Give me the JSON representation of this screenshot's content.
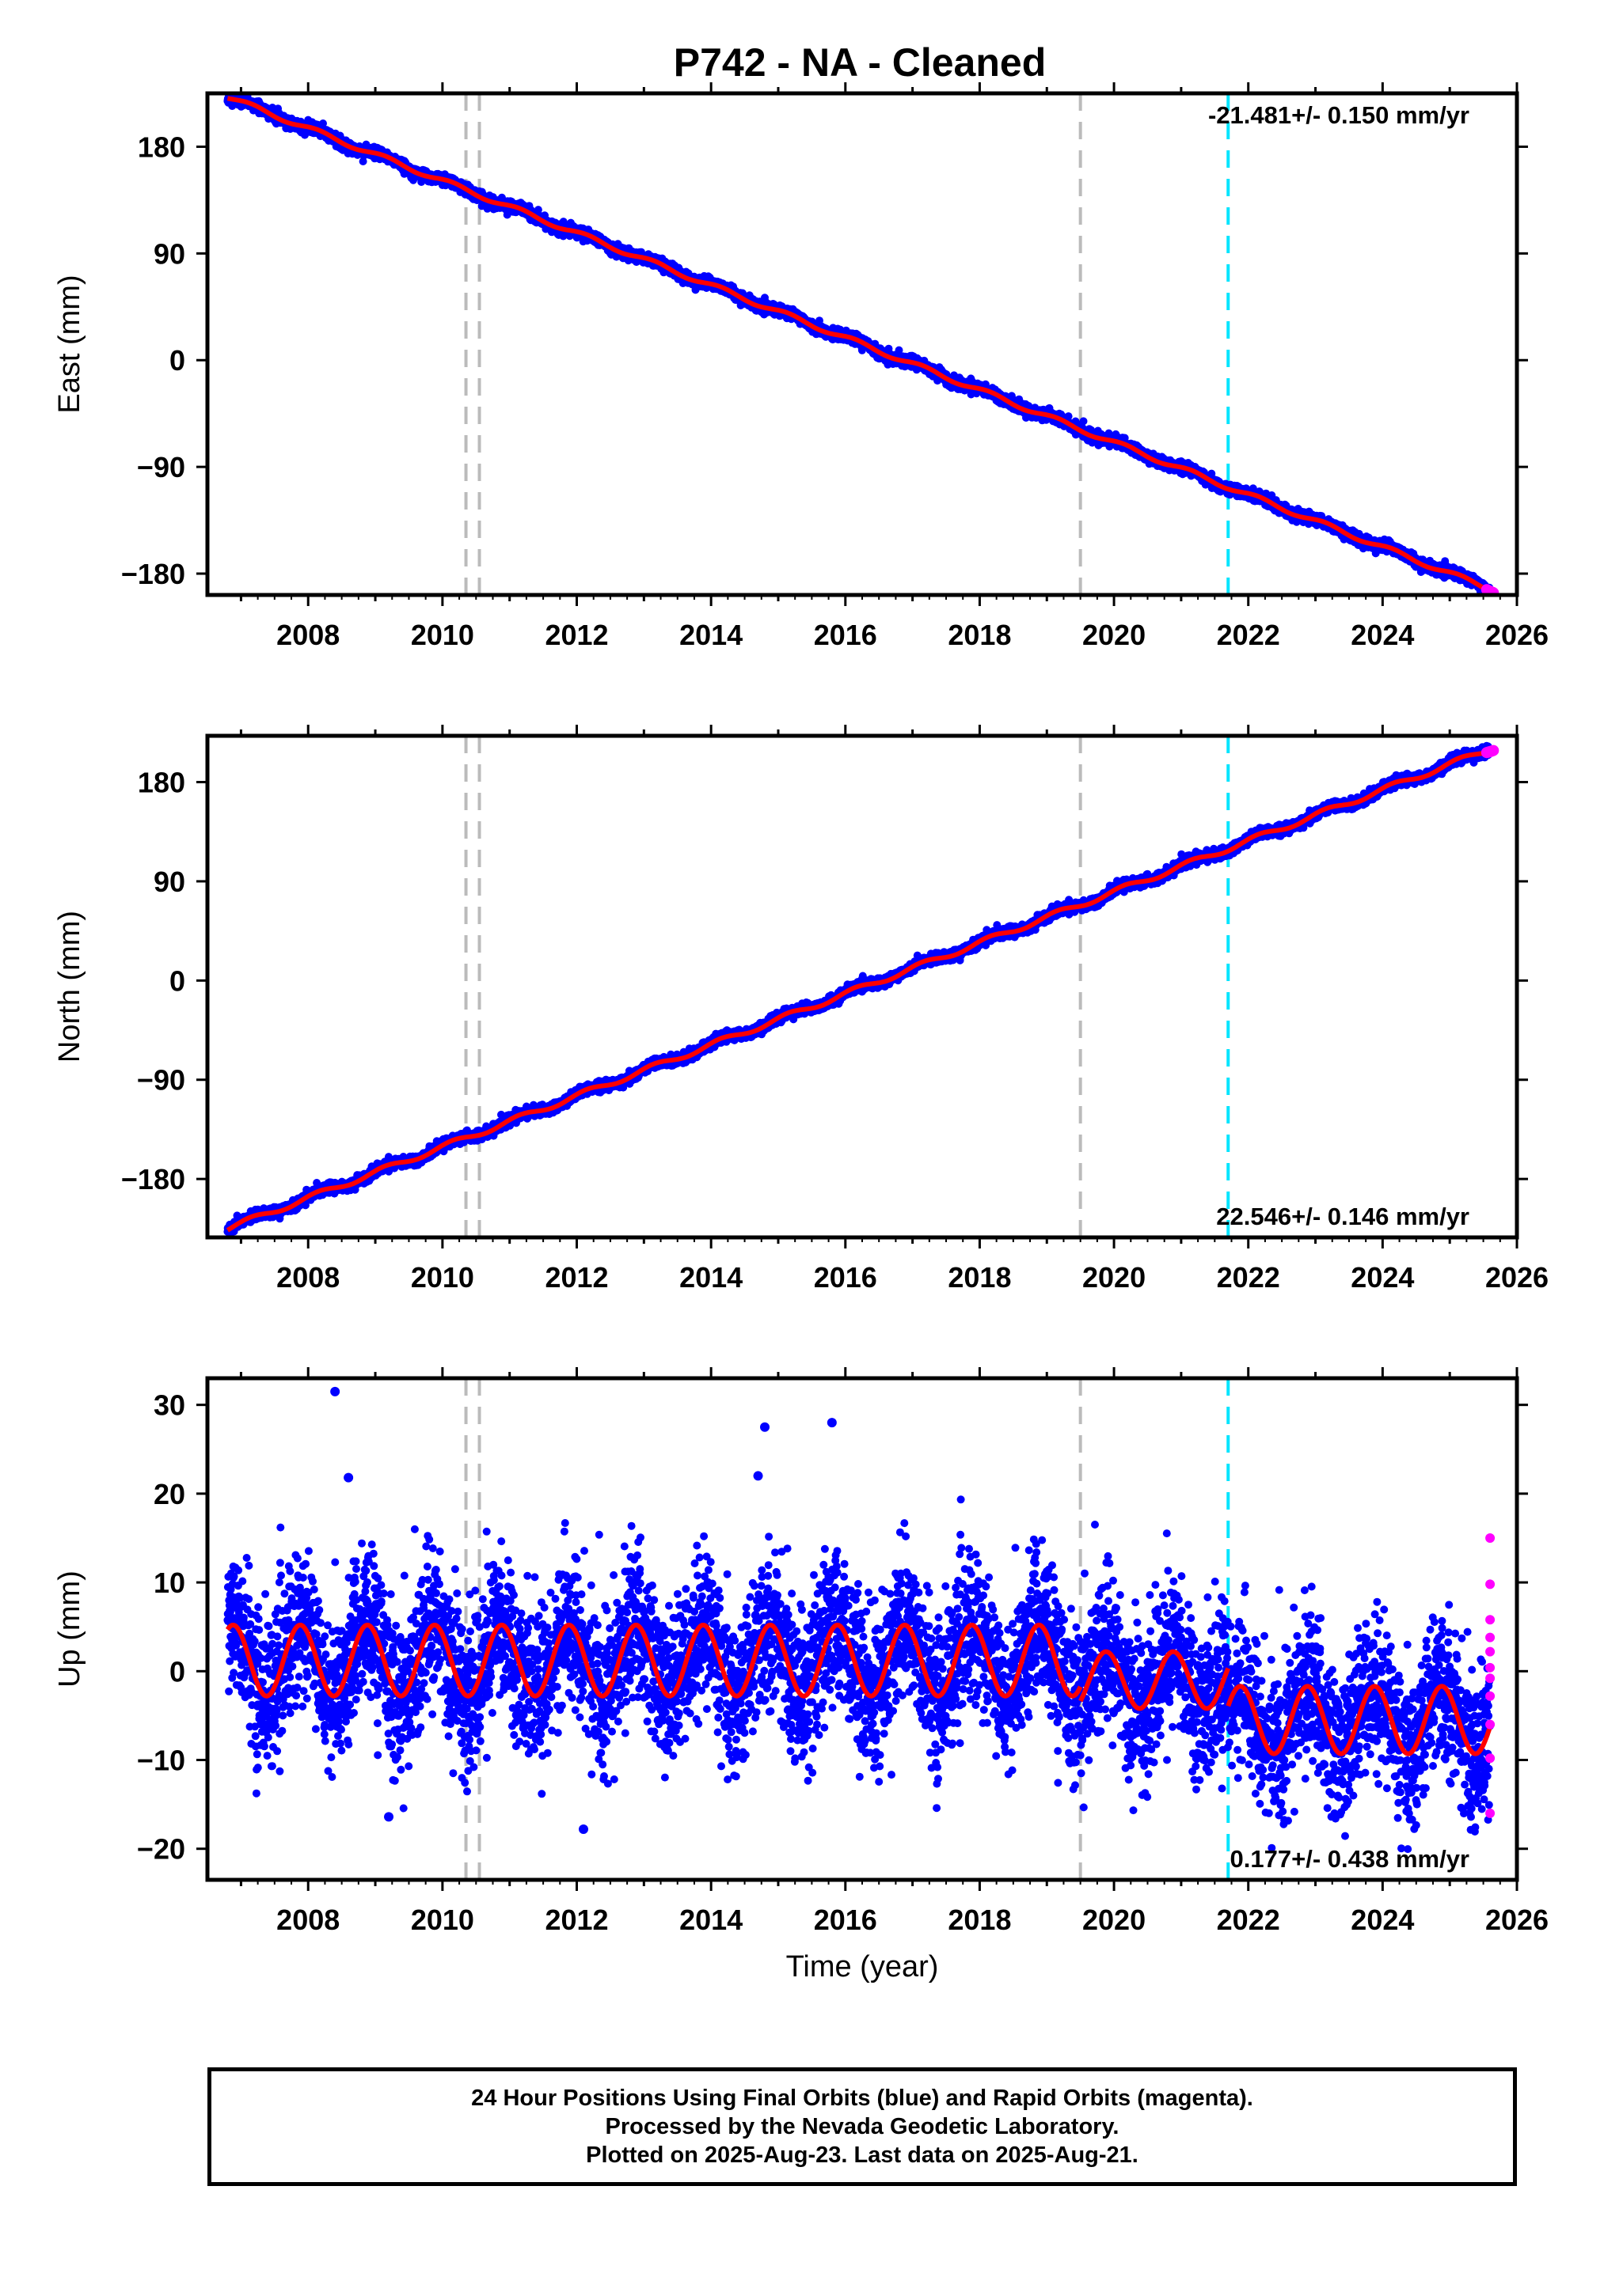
{
  "title": "P742  - NA - Cleaned",
  "footer": {
    "lines": [
      "24 Hour Positions Using Final Orbits (blue) and Rapid Orbits (magenta).",
      "Processed by the Nevada Geodetic Laboratory.",
      "Plotted on 2025-Aug-23. Last data on 2025-Aug-21."
    ]
  },
  "colors": {
    "final_orbits": "#0000ff",
    "rapid_orbits": "#ff00ff",
    "model_fit": "#ff0000",
    "equipment_change": "#bbbbbb",
    "event": "#00e5ff"
  },
  "chart_data": [
    {
      "type": "scatter",
      "name": "east",
      "ylabel": "East (mm)",
      "xlabel": "",
      "xlim": [
        2006.5,
        2026.0
      ],
      "ylim": [
        -198,
        225
      ],
      "xticks": [
        2008,
        2010,
        2012,
        2014,
        2016,
        2018,
        2020,
        2022,
        2024,
        2026
      ],
      "yticks": [
        180,
        90,
        0,
        -90,
        -180
      ],
      "ytick_labels": [
        "180",
        "90",
        "0",
        "−90",
        "−180"
      ],
      "rate_label": "-21.481+/- 0.150 mm/yr",
      "trend": {
        "t0": 2006.8,
        "y0": 222,
        "t1": 2025.6,
        "y1": -193
      },
      "seasonal_amplitude": 2,
      "noise_sigma": 2.2,
      "gray_lines": [
        2010.35,
        2010.55,
        2019.5
      ],
      "cyan_lines": [
        2021.7
      ],
      "rapid_range": [
        2025.55,
        2025.65
      ]
    },
    {
      "type": "scatter",
      "name": "north",
      "ylabel": "North (mm)",
      "xlabel": "",
      "xlim": [
        2006.5,
        2026.0
      ],
      "ylim": [
        -233,
        222
      ],
      "xticks": [
        2008,
        2010,
        2012,
        2014,
        2016,
        2018,
        2020,
        2022,
        2024,
        2026
      ],
      "yticks": [
        180,
        90,
        0,
        -90,
        -180
      ],
      "ytick_labels": [
        "180",
        "90",
        "0",
        "−90",
        "−180"
      ],
      "rate_label": "22.546+/- 0.146 mm/yr",
      "trend": {
        "t0": 2006.8,
        "y0": -225,
        "t1": 2025.6,
        "y1": 210
      },
      "seasonal_amplitude": 2.5,
      "noise_sigma": 2.2,
      "gray_lines": [
        2010.35,
        2010.55,
        2019.5
      ],
      "cyan_lines": [
        2021.7
      ],
      "rapid_range": [
        2025.55,
        2025.65
      ]
    },
    {
      "type": "scatter",
      "name": "up",
      "ylabel": "Up (mm)",
      "xlabel": "Time (year)",
      "xlim": [
        2006.5,
        2026.0
      ],
      "ylim": [
        -23.5,
        33
      ],
      "xticks": [
        2008,
        2010,
        2012,
        2014,
        2016,
        2018,
        2020,
        2022,
        2024,
        2026
      ],
      "yticks": [
        30,
        20,
        10,
        0,
        -10,
        -20
      ],
      "ytick_labels": [
        "30",
        "20",
        "10",
        "0",
        "−10",
        "−20"
      ],
      "rate_label": "0.177+/- 0.438 mm/yr",
      "segments": [
        {
          "t0": 2006.8,
          "t1": 2019.5,
          "offset": 1.2,
          "amplitude": 4.0
        },
        {
          "t0": 2019.5,
          "t1": 2021.7,
          "offset": -1.0,
          "amplitude": 3.2
        },
        {
          "t0": 2021.7,
          "t1": 2025.6,
          "offset": -5.5,
          "amplitude": 3.8
        }
      ],
      "noise_sigma": 4.2,
      "outliers": [
        {
          "x": 2008.4,
          "y": 31.5
        },
        {
          "x": 2008.6,
          "y": 21.8
        },
        {
          "x": 2014.8,
          "y": 27.5
        },
        {
          "x": 2015.8,
          "y": 28.0
        },
        {
          "x": 2014.7,
          "y": 22.0
        },
        {
          "x": 2012.1,
          "y": -17.8
        },
        {
          "x": 2009.2,
          "y": -16.4
        }
      ],
      "rapid_points": [
        {
          "x": 2025.6,
          "y": 15.0
        },
        {
          "x": 2025.6,
          "y": 9.8
        },
        {
          "x": 2025.6,
          "y": 5.8
        },
        {
          "x": 2025.6,
          "y": 3.8
        },
        {
          "x": 2025.6,
          "y": 2.2
        },
        {
          "x": 2025.6,
          "y": 0.4
        },
        {
          "x": 2025.6,
          "y": -0.8
        },
        {
          "x": 2025.6,
          "y": -2.8
        },
        {
          "x": 2025.6,
          "y": -6.0
        },
        {
          "x": 2025.6,
          "y": -9.8
        },
        {
          "x": 2025.6,
          "y": -16.0
        }
      ],
      "gray_lines": [
        2010.35,
        2010.55,
        2019.5
      ],
      "cyan_lines": [
        2021.7
      ]
    }
  ]
}
